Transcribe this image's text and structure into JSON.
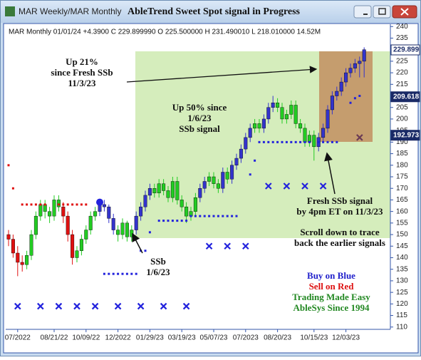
{
  "chart_data": {
    "type": "candlestick",
    "title": "AbleTrend Sweet Spot signal in Progress",
    "tab_label": "MAR Weekly/MAR Monthly",
    "header_text": "MAR  Monthly 01/01/24 +4.3900 C 229.899990 O 225.500000 H 231.490010 L 218.010000 14.52M",
    "categories": [
      null,
      null,
      "07/2022",
      null,
      null,
      null,
      null,
      null,
      null,
      null,
      "08/21/22",
      null,
      null,
      null,
      null,
      null,
      null,
      "10/09/22",
      null,
      null,
      null,
      null,
      null,
      null,
      "12/2022",
      null,
      null,
      null,
      null,
      null,
      null,
      "01/29/23",
      null,
      null,
      null,
      null,
      null,
      null,
      "03/19/23",
      null,
      null,
      null,
      null,
      null,
      null,
      "05/07/23",
      null,
      null,
      null,
      null,
      null,
      null,
      "07/2023",
      null,
      null,
      null,
      null,
      null,
      null,
      "08/20/23",
      null,
      null,
      null,
      null,
      null,
      null,
      null,
      "10/15/23",
      null,
      null,
      null,
      null,
      null,
      null,
      "12/03/23",
      null,
      null,
      null,
      null
    ],
    "candles": [
      [
        150,
        152,
        145,
        148
      ],
      [
        148,
        150,
        140,
        142
      ],
      [
        142,
        145,
        132,
        138
      ],
      [
        138,
        141,
        134,
        137
      ],
      [
        137,
        143,
        135,
        141
      ],
      [
        141,
        152,
        139,
        150
      ],
      [
        150,
        160,
        148,
        158
      ],
      [
        158,
        165,
        156,
        163
      ],
      [
        163,
        165,
        157,
        160
      ],
      [
        160,
        162,
        155,
        158
      ],
      [
        158,
        167,
        156,
        165
      ],
      [
        165,
        167,
        160,
        162
      ],
      [
        162,
        164,
        155,
        158
      ],
      [
        158,
        160,
        147,
        150
      ],
      [
        150,
        152,
        137,
        140
      ],
      [
        140,
        145,
        138,
        143
      ],
      [
        143,
        150,
        141,
        148
      ],
      [
        148,
        154,
        146,
        152
      ],
      [
        152,
        160,
        150,
        158
      ],
      [
        158,
        162,
        156,
        160
      ],
      [
        160,
        165,
        158,
        163
      ],
      [
        163,
        165,
        160,
        162
      ],
      [
        162,
        163,
        155,
        157
      ],
      [
        157,
        159,
        150,
        152
      ],
      [
        152,
        154,
        147,
        150
      ],
      [
        150,
        157,
        148,
        155
      ],
      [
        155,
        156,
        147,
        149
      ],
      [
        149,
        154,
        147,
        152
      ],
      [
        152,
        160,
        150,
        158
      ],
      [
        158,
        164,
        156,
        162
      ],
      [
        162,
        169,
        160,
        167
      ],
      [
        167,
        172,
        165,
        170
      ],
      [
        170,
        172,
        166,
        168
      ],
      [
        168,
        174,
        166,
        172
      ],
      [
        172,
        174,
        167,
        169
      ],
      [
        169,
        171,
        164,
        166
      ],
      [
        166,
        175,
        164,
        173
      ],
      [
        173,
        175,
        163,
        165
      ],
      [
        165,
        167,
        160,
        162
      ],
      [
        162,
        164,
        155,
        158
      ],
      [
        158,
        162,
        156,
        160
      ],
      [
        160,
        168,
        158,
        166
      ],
      [
        166,
        172,
        164,
        170
      ],
      [
        170,
        175,
        168,
        173
      ],
      [
        173,
        177,
        171,
        175
      ],
      [
        175,
        177,
        170,
        172
      ],
      [
        172,
        174,
        168,
        170
      ],
      [
        170,
        179,
        168,
        177
      ],
      [
        177,
        179,
        172,
        174
      ],
      [
        174,
        182,
        172,
        180
      ],
      [
        180,
        185,
        178,
        183
      ],
      [
        183,
        189,
        181,
        187
      ],
      [
        187,
        194,
        185,
        192
      ],
      [
        192,
        198,
        190,
        196
      ],
      [
        196,
        200,
        194,
        198
      ],
      [
        198,
        200,
        194,
        196
      ],
      [
        196,
        202,
        194,
        200
      ],
      [
        200,
        207,
        198,
        205
      ],
      [
        205,
        210,
        203,
        207
      ],
      [
        207,
        209,
        203,
        205
      ],
      [
        205,
        207,
        198,
        200
      ],
      [
        200,
        204,
        198,
        202
      ],
      [
        202,
        208,
        200,
        206
      ],
      [
        206,
        208,
        196,
        198
      ],
      [
        198,
        200,
        194,
        196
      ],
      [
        196,
        198,
        188,
        190
      ],
      [
        190,
        195,
        188,
        193
      ],
      [
        193,
        195,
        182,
        188
      ],
      [
        188,
        194,
        186,
        192
      ],
      [
        192,
        198,
        190,
        196
      ],
      [
        196,
        206,
        194,
        204
      ],
      [
        204,
        212,
        202,
        210
      ],
      [
        210,
        214,
        208,
        212
      ],
      [
        212,
        218,
        210,
        216
      ],
      [
        216,
        222,
        214,
        220
      ],
      [
        220,
        224,
        218,
        222
      ],
      [
        222,
        226,
        220,
        224
      ],
      [
        224,
        227,
        218,
        225
      ],
      [
        225,
        231,
        218,
        230
      ]
    ],
    "colors": [
      "#e01010",
      "#e01010",
      "#e01010",
      "#e01010",
      "#22cc22",
      "#22cc22",
      "#22cc22",
      "#22cc22",
      "#22cc22",
      "#22cc22",
      "#22cc22",
      "#22cc22",
      "#e01010",
      "#e01010",
      "#e01010",
      "#22cc22",
      "#22cc22",
      "#22cc22",
      "#22cc22",
      "#22cc22",
      "#3333cc",
      "#3333cc",
      "#3333cc",
      "#3333cc",
      "#22cc22",
      "#22cc22",
      "#22cc22",
      "#22cc22",
      "#3333cc",
      "#3333cc",
      "#3333cc",
      "#3333cc",
      "#22cc22",
      "#22cc22",
      "#22cc22",
      "#22cc22",
      "#22cc22",
      "#22cc22",
      "#22cc22",
      "#22cc22",
      "#22cc22",
      "#22cc22",
      "#3333cc",
      "#3333cc",
      "#22cc22",
      "#22cc22",
      "#22cc22",
      "#3333cc",
      "#22cc22",
      "#3333cc",
      "#3333cc",
      "#3333cc",
      "#3333cc",
      "#3333cc",
      "#22cc22",
      "#22cc22",
      "#3333cc",
      "#3333cc",
      "#3333cc",
      "#22cc22",
      "#22cc22",
      "#22cc22",
      "#22cc22",
      "#22cc22",
      "#22cc22",
      "#22cc22",
      "#22cc22",
      "#22cc22",
      "#3333cc",
      "#3333cc",
      "#3333cc",
      "#3333cc",
      "#3333cc",
      "#3333cc",
      "#3333cc",
      "#3333cc",
      "#3333cc",
      "#3333cc",
      "#3333cc"
    ],
    "ylim": [
      109,
      241
    ],
    "yticks": [
      110,
      115,
      120,
      125,
      130,
      135,
      140,
      145,
      150,
      155,
      160,
      165,
      170,
      175,
      180,
      185,
      190,
      195,
      200,
      205,
      210,
      215,
      220,
      225,
      230,
      235,
      240
    ],
    "dots": [
      {
        "color": "#e01010",
        "x": [
          0,
          1,
          3,
          4,
          5,
          6,
          7,
          8,
          11,
          12,
          13,
          14,
          15,
          16,
          17
        ],
        "values": [
          180,
          170,
          163,
          163,
          163,
          163,
          163,
          163,
          163,
          163,
          163,
          163,
          163,
          163,
          163
        ]
      },
      {
        "color": "#2222dd",
        "x": [
          21,
          22,
          23,
          24,
          25,
          26,
          27,
          28,
          29,
          30,
          31,
          33,
          34,
          35,
          36,
          37,
          38,
          39,
          40,
          41,
          42,
          43,
          44,
          45,
          46,
          47,
          48,
          49,
          50,
          53,
          54,
          55,
          56,
          57,
          58,
          59,
          60,
          61,
          62,
          63,
          64,
          65,
          66,
          68,
          69,
          70,
          71,
          72,
          75,
          76,
          77
        ],
        "values": [
          133,
          133,
          133,
          133,
          133,
          133,
          133,
          133,
          143,
          143,
          151,
          156,
          156,
          156,
          156,
          156,
          156,
          156,
          158,
          158,
          158,
          158,
          158,
          158,
          158,
          158,
          158,
          158,
          158,
          176,
          182,
          190,
          190,
          190,
          190,
          190,
          190,
          190,
          190,
          190,
          190,
          190,
          190,
          190,
          190,
          190,
          190,
          190,
          207,
          209,
          210
        ]
      }
    ],
    "xmarks": [
      {
        "color": "#2222dd",
        "x": [
          2,
          7,
          11,
          15,
          19,
          24,
          29,
          34,
          39,
          44,
          48,
          52,
          57,
          61,
          65,
          69
        ],
        "values": [
          119,
          119,
          119,
          119,
          119,
          119,
          119,
          119,
          119,
          145,
          145,
          145,
          171,
          171,
          171,
          171
        ]
      },
      {
        "color": "#6a3a55",
        "x": [
          77
        ],
        "values": [
          192
        ]
      }
    ],
    "signal_circle": {
      "x": 20,
      "value": 164,
      "color": "#2222dd"
    },
    "price_flags": [
      {
        "value": 229.899,
        "label": "229.899"
      },
      {
        "value": 209.618,
        "label": "209.618"
      },
      {
        "value": 192.973,
        "label": "192.973"
      }
    ],
    "annotations": [
      [
        "Up 21%",
        "since Fresh SSb",
        "11/3/23"
      ],
      [
        "Up 50% since",
        "1/6/23",
        "SSb signal"
      ],
      [
        "SSb",
        "1/6/23"
      ],
      [
        "Fresh SSb signal",
        "by 4pm ET on 11/3/23"
      ],
      [
        "Scroll down to trace",
        "back the earlier signals"
      ]
    ],
    "notes": [
      {
        "text": "Buy on Blue",
        "color": "#2222cc"
      },
      {
        "text": "Sell on Red",
        "color": "#dd1111"
      },
      {
        "text": "Trading Made Easy",
        "color": "#228822"
      },
      {
        "text": "AbleSys Since 1994",
        "color": "#228822"
      }
    ]
  }
}
